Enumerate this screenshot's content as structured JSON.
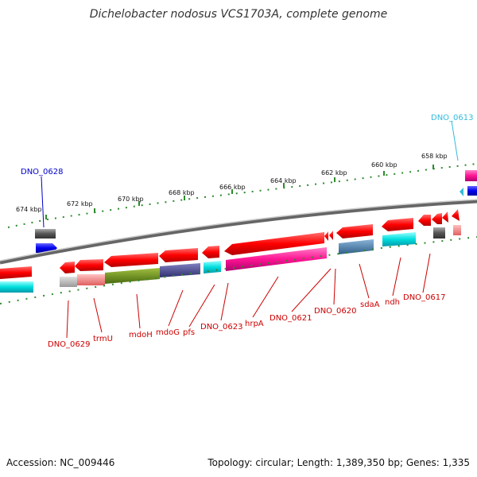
{
  "title": "Dichelobacter nodosus VCS1703A, complete genome",
  "footer": {
    "accession": "Accession: NC_009446",
    "topology": "Topology: circular; Length: 1,389,350 bp; Genes: 1,335"
  },
  "ticks": [
    {
      "label": "674 kbp"
    },
    {
      "label": "672 kbp"
    },
    {
      "label": "670 kbp"
    },
    {
      "label": "668 kbp"
    },
    {
      "label": "666 kbp"
    },
    {
      "label": "664 kbp"
    },
    {
      "label": "662 kbp"
    },
    {
      "label": "660 kbp"
    },
    {
      "label": "658 kbp"
    }
  ],
  "labels": {
    "top": [
      {
        "text": "DNO_0628",
        "color": "#0000cc"
      },
      {
        "text": "DNO_0613",
        "color": "#33bbdd"
      }
    ],
    "bottom": [
      {
        "text": "DNO_0629"
      },
      {
        "text": "trmU"
      },
      {
        "text": "mdoH"
      },
      {
        "text": "mdoG"
      },
      {
        "text": "pfs"
      },
      {
        "text": "DNO_0623"
      },
      {
        "text": "hrpA"
      },
      {
        "text": "DNO_0621"
      },
      {
        "text": "DNO_0620"
      },
      {
        "text": "sdaA"
      },
      {
        "text": "ndh"
      },
      {
        "text": "DNO_0617"
      }
    ]
  },
  "colors": {
    "cds": "#ff0000",
    "label": "#cc0000",
    "backbone": "#888888",
    "tick": "#2e8b2e"
  }
}
